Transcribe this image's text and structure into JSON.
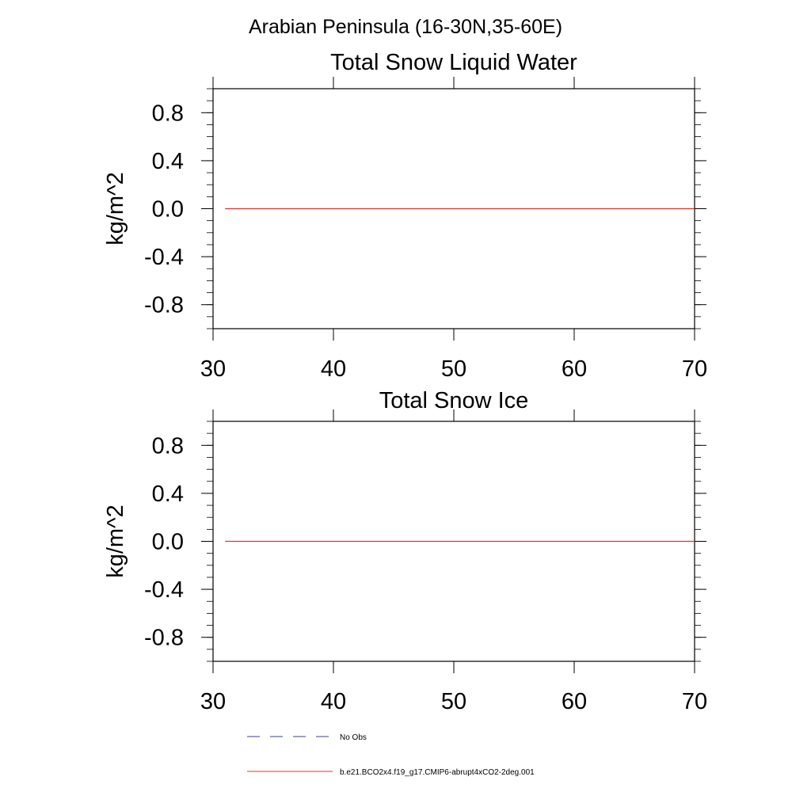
{
  "figure": {
    "suptitle": "Arabian Peninsula (16-30N,35-60E)"
  },
  "chart_data": [
    {
      "type": "line",
      "title": "Total Snow Liquid Water",
      "xlabel": "",
      "ylabel": "kg/m^2",
      "xlim": [
        30,
        70
      ],
      "ylim": [
        -1,
        1
      ],
      "xticks": [
        30,
        40,
        50,
        60,
        70
      ],
      "xtick_labels": [
        "30",
        "40",
        "50",
        "60",
        "70"
      ],
      "yticks": [
        -0.8,
        -0.4,
        0.0,
        0.4,
        0.8
      ],
      "ytick_labels": [
        "-0.8",
        "-0.4",
        "0.0",
        "0.4",
        "0.8"
      ],
      "grid": false,
      "series": [
        {
          "name": "b.e21.BCO2x4.f19_g17.CMIP6-abrupt4xCO2-2deg.001",
          "color": "#e8302a",
          "style": "solid",
          "x": [
            31,
            70
          ],
          "y": [
            0.0,
            0.0
          ]
        }
      ]
    },
    {
      "type": "line",
      "title": "Total Snow Ice",
      "xlabel": "",
      "ylabel": "kg/m^2",
      "xlim": [
        30,
        70
      ],
      "ylim": [
        -1,
        1
      ],
      "xticks": [
        30,
        40,
        50,
        60,
        70
      ],
      "xtick_labels": [
        "30",
        "40",
        "50",
        "60",
        "70"
      ],
      "yticks": [
        -0.8,
        -0.4,
        0.0,
        0.4,
        0.8
      ],
      "ytick_labels": [
        "-0.8",
        "-0.4",
        "0.0",
        "0.4",
        "0.8"
      ],
      "grid": false,
      "series": [
        {
          "name": "b.e21.BCO2x4.f19_g17.CMIP6-abrupt4xCO2-2deg.001",
          "color": "#e8302a",
          "style": "solid",
          "x": [
            31,
            70
          ],
          "y": [
            0.0,
            0.0
          ]
        }
      ]
    }
  ],
  "legend": {
    "placement": "bottom-left",
    "entries": [
      {
        "label": "No Obs",
        "color": "#3a3f8f",
        "style": "dashed"
      },
      {
        "label": "b.e21.BCO2x4.f19_g17.CMIP6-abrupt4xCO2-2deg.001",
        "color": "#e8302a",
        "style": "solid"
      }
    ]
  }
}
